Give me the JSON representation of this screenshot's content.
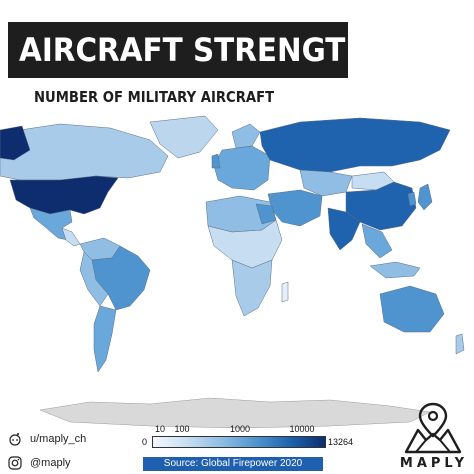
{
  "title": "AIRCRAFT STRENGTH",
  "subtitle": "NUMBER OF MILITARY AIRCRAFT",
  "legend": {
    "ticks": [
      "10",
      "100",
      "1000",
      "10000"
    ],
    "min": "0",
    "max": "13264",
    "scale": "log",
    "colors": [
      "#f4f9fe",
      "#c7ddf1",
      "#8fbde4",
      "#4f94cf",
      "#1f62ad",
      "#0d2d6e"
    ]
  },
  "source": "Source: Global Firepower 2020",
  "social": {
    "reddit_handle": "u/maply_ch",
    "instagram_handle": "@maply",
    "reddit_icon": "reddit-icon",
    "instagram_icon": "instagram-icon"
  },
  "brand": {
    "name": "MAPLY",
    "logo": "map-pin-mountain-icon"
  },
  "colors": {
    "accent": "#1f5fb0",
    "title_bg": "#1e1e1e",
    "no_data": "#d9d9d9"
  },
  "highlights": {
    "highest": "United States",
    "high": [
      "Russia",
      "China"
    ]
  }
}
